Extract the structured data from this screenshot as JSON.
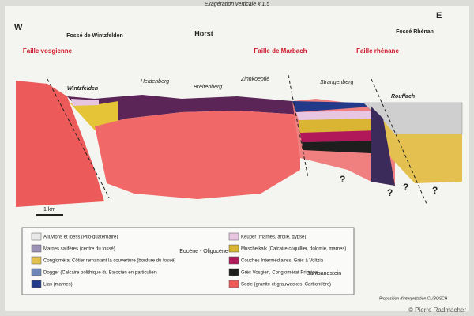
{
  "header": {
    "subtitle": "Exagération verticale x 1,5",
    "west": "W",
    "east": "E"
  },
  "zones": [
    "Fossé de Wintzfelden",
    "Horst",
    "Fossé Rhénan"
  ],
  "faults": [
    "Faille vosgienne",
    "Faille de Marbach",
    "Faille rhénane"
  ],
  "places": [
    "Wintzfelden",
    "Heidenberg",
    "Breitenberg",
    "Zinnkoepflé",
    "Strangenberg",
    "Rouffach"
  ],
  "unknowns": [
    "?",
    "?",
    "?",
    "?"
  ],
  "scale": "1 km",
  "legend": {
    "left": [
      "Alluvions et loess (Plio-quaternaire)",
      "Marnes salifères (centre du fossé)",
      "Conglomérat Côtier remaniant la couverture (bordure du fossé)",
      "Dogger (Calcaire oolithique du Bajocien en particulier)",
      "Lias (marnes)"
    ],
    "left_group": "Eocène - Oligocène",
    "right": [
      "Keuper (marnes, argile, gypse)",
      "Muschelkalk (Calcaire coquillier, dolomie, marnes)",
      "Couches Intermédiaires, Grès à Voltzia",
      "Grès Vosgien, Conglomérat Principal",
      "Socle (granite et grauwackes, Carbonifère)"
    ],
    "right_group": "Buntsandstein"
  },
  "credits": {
    "source": "Proposition d'interprétation CLIBOSCH",
    "photo": "© Pierre Radmacher"
  }
}
